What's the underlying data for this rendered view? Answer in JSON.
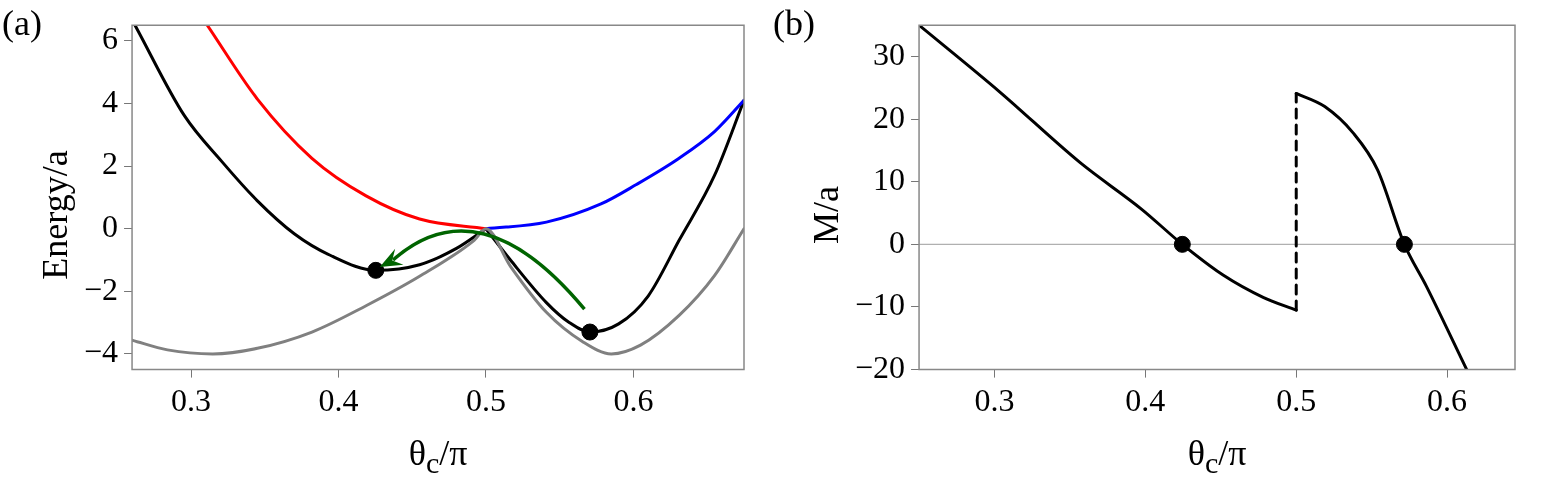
{
  "chart_data": [
    {
      "type": "line",
      "title": "(a)",
      "xlabel": "θ$_{c}$/π",
      "ylabel": "Energy/a",
      "xlim": [
        0.26,
        0.675
      ],
      "xticks": [
        0.3,
        0.4,
        0.5,
        0.6
      ],
      "ylim": [
        -4.5,
        6.5
      ],
      "yticks": [
        {
          "value": -4,
          "label": "−4"
        },
        {
          "value": -2,
          "label": "−2"
        },
        0,
        2,
        4,
        6
      ],
      "grid": false,
      "legend": false,
      "marker": "none",
      "series": [
        {
          "color": "#808080",
          "x": [
            0.26,
            0.284,
            0.3147,
            0.345,
            0.382,
            0.4187,
            0.455,
            0.492,
            0.5,
            0.5166,
            0.541,
            0.5656,
            0.585,
            0.6048,
            0.631,
            0.655,
            0.675
          ],
          "values": [
            -3.56,
            -3.87,
            -4.0,
            -3.82,
            -3.3,
            -2.46,
            -1.52,
            -0.37,
            0,
            -1.2,
            -2.67,
            -3.61,
            -4.0,
            -3.72,
            -2.77,
            -1.5,
            0
          ]
        },
        {
          "color": "#ff0000",
          "x": [
            0.311,
            0.345,
            0.382,
            0.4187,
            0.455,
            0.5
          ],
          "values": [
            6.5,
            4.14,
            2.25,
            1.05,
            0.31,
            0
          ]
        },
        {
          "color": "#0000ff",
          "x": [
            0.5,
            0.541,
            0.578,
            0.602,
            0.631,
            0.655,
            0.675
          ],
          "values": [
            0,
            0.21,
            0.79,
            1.41,
            2.25,
            3.1,
            4.1
          ]
        },
        {
          "color": "#000000",
          "x": [
            0.262,
            0.2955,
            0.3208,
            0.345,
            0.37,
            0.394,
            0.4253,
            0.455,
            0.48,
            0.5
          ],
          "values": [
            6.5,
            3.61,
            2.15,
            0.89,
            -0.16,
            -0.84,
            -1.33,
            -1.15,
            -0.63,
            0
          ]
        },
        {
          "color": "#000000",
          "x": [
            0.5,
            0.5166,
            0.541,
            0.556,
            0.5705,
            0.59,
            0.61,
            0.631,
            0.655,
            0.675
          ],
          "values": [
            0,
            -1.0,
            -2.36,
            -2.98,
            -3.3,
            -3.04,
            -2.15,
            -0.37,
            1.7,
            4.1
          ]
        },
        {
          "type": "scatter",
          "marker": "circle",
          "color": "#000000",
          "x": [
            0.4253,
            0.5705
          ],
          "values": [
            -1.33,
            -3.3
          ]
        }
      ]
    },
    {
      "type": "line",
      "title": "(b)",
      "xlabel": "θ$_{c}$/π",
      "ylabel": "M/a",
      "xlim": [
        0.25,
        0.645
      ],
      "xticks": [
        0.3,
        0.4,
        0.5,
        0.6
      ],
      "ylim": [
        -20,
        35
      ],
      "yticks": [
        {
          "value": -20,
          "label": "−20"
        },
        {
          "value": -10,
          "label": "−10"
        },
        0,
        10,
        20,
        30
      ],
      "grid": false,
      "legend": false,
      "marker": "none",
      "ref_lines": [
        {
          "axis": "y",
          "value": 0,
          "color": "#b0b0b0"
        }
      ],
      "series": [
        {
          "color": "#000000",
          "x": [
            0.25,
            0.3032,
            0.357,
            0.3976,
            0.4245,
            0.4515,
            0.4784,
            0.5
          ],
          "values": [
            35,
            24.4,
            13,
            5.6,
            0,
            -4.9,
            -8.5,
            -10.5
          ]
        },
        {
          "color": "#000000",
          "line_style": "dashed",
          "x": [
            0.5,
            0.5
          ],
          "values": [
            -10.5,
            24.1
          ]
        },
        {
          "color": "#000000",
          "x": [
            0.5,
            0.5189,
            0.5377,
            0.5539,
            0.5717,
            0.5863,
            0.613
          ],
          "values": [
            24.1,
            22.0,
            17.8,
            11.9,
            0,
            -6.7,
            -20
          ]
        },
        {
          "type": "scatter",
          "marker": "circle",
          "color": "#000000",
          "x": [
            0.4245,
            0.5717
          ],
          "values": [
            0,
            0
          ]
        }
      ]
    }
  ]
}
